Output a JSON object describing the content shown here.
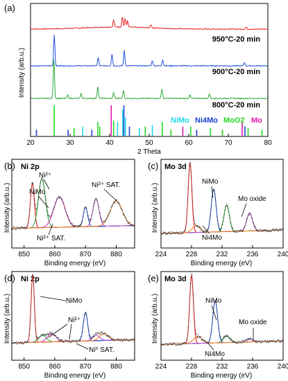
{
  "chart_data": [
    {
      "panel": "(a)",
      "type": "line",
      "xlabel": "2 Theta",
      "ylabel": "Intensity (arb.u.)",
      "xlim": [
        20,
        80
      ],
      "xticks": [
        "20",
        "30",
        "40",
        "50",
        "60",
        "70",
        "80"
      ],
      "series": [
        {
          "name": "950°C-20 min",
          "color": "#e8201f",
          "peaks": [
            [
              41.0,
              10
            ],
            [
              43.2,
              15
            ],
            [
              43.9,
              12
            ],
            [
              44.5,
              9
            ],
            [
              50.4,
              5
            ],
            [
              74.5,
              3
            ]
          ]
        },
        {
          "name": "900°C-20 min",
          "color": "#1f50e0",
          "peaks": [
            [
              26.0,
              45
            ],
            [
              37.1,
              12
            ],
            [
              40.6,
              18
            ],
            [
              43.7,
              22
            ],
            [
              50.8,
              8
            ],
            [
              53.4,
              9
            ],
            [
              74.1,
              5
            ]
          ]
        },
        {
          "name": "800°C-20 min",
          "color": "#2aa835",
          "peaks": [
            [
              25.9,
              58
            ],
            [
              29.4,
              5
            ],
            [
              32.8,
              7
            ],
            [
              37.0,
              18
            ],
            [
              41.0,
              8
            ],
            [
              43.5,
              12
            ],
            [
              53.2,
              14
            ],
            [
              60.3,
              5
            ],
            [
              65.2,
              6
            ]
          ]
        }
      ],
      "reference_legend": [
        {
          "name": "NiMo",
          "color": "#21d8e8"
        },
        {
          "name": "Ni4Mo",
          "color": "#1740d0"
        },
        {
          "name": "MoO2",
          "color": "#1fd81f"
        },
        {
          "name": "Mo",
          "color": "#e019a8"
        }
      ],
      "reference_sticks": [
        {
          "x": 21.5,
          "h": 0.2,
          "color": "#1740d0"
        },
        {
          "x": 26.0,
          "h": 1.0,
          "color": "#1fd81f"
        },
        {
          "x": 29.5,
          "h": 0.2,
          "color": "#1740d0"
        },
        {
          "x": 31.0,
          "h": 0.25,
          "color": "#1fd81f"
        },
        {
          "x": 33.2,
          "h": 0.3,
          "color": "#21d8e8"
        },
        {
          "x": 35.5,
          "h": 0.2,
          "color": "#1740d0"
        },
        {
          "x": 37.0,
          "h": 0.45,
          "color": "#1fd81f"
        },
        {
          "x": 37.5,
          "h": 0.3,
          "color": "#1fd81f"
        },
        {
          "x": 40.4,
          "h": 1.0,
          "color": "#e019a8"
        },
        {
          "x": 41.0,
          "h": 0.5,
          "color": "#1fd81f"
        },
        {
          "x": 42.0,
          "h": 0.45,
          "color": "#21d8e8"
        },
        {
          "x": 43.3,
          "h": 0.85,
          "color": "#21d8e8"
        },
        {
          "x": 43.6,
          "h": 1.0,
          "color": "#1740d0"
        },
        {
          "x": 44.0,
          "h": 0.6,
          "color": "#21d8e8"
        },
        {
          "x": 45.0,
          "h": 0.3,
          "color": "#1740d0"
        },
        {
          "x": 47.5,
          "h": 0.25,
          "color": "#21d8e8"
        },
        {
          "x": 49.0,
          "h": 0.3,
          "color": "#1fd81f"
        },
        {
          "x": 50.8,
          "h": 0.35,
          "color": "#21d8e8"
        },
        {
          "x": 53.3,
          "h": 0.45,
          "color": "#1fd81f"
        },
        {
          "x": 55.5,
          "h": 0.2,
          "color": "#1fd81f"
        },
        {
          "x": 58.5,
          "h": 0.3,
          "color": "#e019a8"
        },
        {
          "x": 60.5,
          "h": 0.3,
          "color": "#1fd81f"
        },
        {
          "x": 62.0,
          "h": 0.2,
          "color": "#1740d0"
        },
        {
          "x": 65.5,
          "h": 0.25,
          "color": "#1fd81f"
        },
        {
          "x": 68.5,
          "h": 0.2,
          "color": "#1fd81f"
        },
        {
          "x": 73.5,
          "h": 0.45,
          "color": "#e019a8"
        },
        {
          "x": 74.2,
          "h": 0.3,
          "color": "#1740d0"
        },
        {
          "x": 75.0,
          "h": 0.25,
          "color": "#1fd81f"
        },
        {
          "x": 78.5,
          "h": 0.2,
          "color": "#1fd81f"
        }
      ]
    },
    {
      "panel": "(b)",
      "title": "Ni 2p",
      "type": "line",
      "xlabel": "Binding energy (eV)",
      "ylabel": "Intensity (arb.u.)",
      "xlim": [
        846,
        886
      ],
      "xticks": [
        "850",
        "860",
        "870",
        "880"
      ],
      "annotations": [
        "Ni²⁺",
        "NiMo",
        "Ni²⁺ SAT.",
        "Ni²⁺ SAT."
      ],
      "components": [
        {
          "name": "NiMo",
          "center": 852.7,
          "height": 0.8,
          "width": 0.9,
          "color": "#e8201f"
        },
        {
          "name": "Ni²⁺",
          "center": 855.8,
          "height": 0.88,
          "width": 1.6,
          "color": "#2aa835"
        },
        {
          "name": "Ni²⁺ SAT.",
          "center": 861.5,
          "height": 0.55,
          "width": 2.6,
          "color": "#d62fb9"
        },
        {
          "name": "NiMo",
          "center": 870.0,
          "height": 0.35,
          "width": 1.0,
          "color": "#1f50e0"
        },
        {
          "name": "Ni²⁺",
          "center": 873.4,
          "height": 0.5,
          "width": 1.4,
          "color": "#b64fd1"
        },
        {
          "name": "Ni²⁺ SAT.",
          "center": 880.0,
          "height": 0.45,
          "width": 2.8,
          "color": "#f08020"
        }
      ]
    },
    {
      "panel": "(c)",
      "title": "Mo 3d",
      "type": "line",
      "xlabel": "Binding energy (eV)",
      "ylabel": "Intensity (arb.u.)",
      "xlim": [
        224,
        240
      ],
      "xticks": [
        "224",
        "228",
        "232",
        "236",
        "240"
      ],
      "annotations": [
        "NiMo",
        "Mo oxide",
        "Ni4Mo"
      ],
      "components": [
        {
          "name": "NiMo",
          "center": 227.8,
          "height": 1.0,
          "width": 0.35,
          "color": "#e8201f"
        },
        {
          "name": "NiMo",
          "center": 230.9,
          "height": 0.62,
          "width": 0.45,
          "color": "#1f50e0"
        },
        {
          "name": "Mo oxide",
          "center": 232.6,
          "height": 0.38,
          "width": 0.5,
          "color": "#2aa835"
        },
        {
          "name": "Mo oxide",
          "center": 235.6,
          "height": 0.25,
          "width": 0.55,
          "color": "#b64fd1"
        },
        {
          "name": "Ni4Mo",
          "center": 228.6,
          "height": 0.1,
          "width": 0.7,
          "color": "#f08020"
        }
      ]
    },
    {
      "panel": "(d)",
      "title": "Ni 2p",
      "type": "line",
      "xlabel": "Binding energy (eV)",
      "ylabel": "Intensity (arb.u.)",
      "xlim": [
        846,
        886
      ],
      "xticks": [
        "850",
        "860",
        "870",
        "880"
      ],
      "annotations": [
        "NiMo",
        "Ni²⁺",
        "Ni⁰ SAT."
      ],
      "components": [
        {
          "name": "NiMo",
          "center": 852.8,
          "height": 1.0,
          "width": 0.75,
          "color": "#e8201f"
        },
        {
          "name": "Ni²⁺",
          "center": 856.0,
          "height": 0.1,
          "width": 1.8,
          "color": "#2aa835"
        },
        {
          "name": "Ni⁰ SAT.",
          "center": 859.0,
          "height": 0.12,
          "width": 2.0,
          "color": "#d62fb9"
        },
        {
          "name": "NiMo",
          "center": 870.0,
          "height": 0.42,
          "width": 1.0,
          "color": "#1f50e0"
        },
        {
          "name": "Ni²⁺",
          "center": 873.5,
          "height": 0.08,
          "width": 1.6,
          "color": "#b64fd1"
        },
        {
          "name": "Ni⁰ SAT.",
          "center": 876.0,
          "height": 0.1,
          "width": 2.0,
          "color": "#f08020"
        }
      ]
    },
    {
      "panel": "(e)",
      "title": "Mo 3d",
      "type": "line",
      "xlabel": "Binding energy (eV)",
      "ylabel": "Intensity (arb.u.)",
      "xlim": [
        224,
        240
      ],
      "xticks": [
        "224",
        "228",
        "232",
        "236",
        "240"
      ],
      "annotations": [
        "NiMo",
        "Mo oxide",
        "Ni4Mo"
      ],
      "components": [
        {
          "name": "NiMo",
          "center": 228.0,
          "height": 1.0,
          "width": 0.35,
          "color": "#e8201f"
        },
        {
          "name": "NiMo",
          "center": 231.1,
          "height": 0.62,
          "width": 0.45,
          "color": "#1f50e0"
        },
        {
          "name": "Mo oxide",
          "center": 232.6,
          "height": 0.1,
          "width": 0.6,
          "color": "#2aa835"
        },
        {
          "name": "Mo oxide",
          "center": 235.6,
          "height": 0.05,
          "width": 0.6,
          "color": "#b64fd1"
        },
        {
          "name": "Ni4Mo",
          "center": 228.8,
          "height": 0.1,
          "width": 0.8,
          "color": "#f08020"
        }
      ]
    }
  ]
}
